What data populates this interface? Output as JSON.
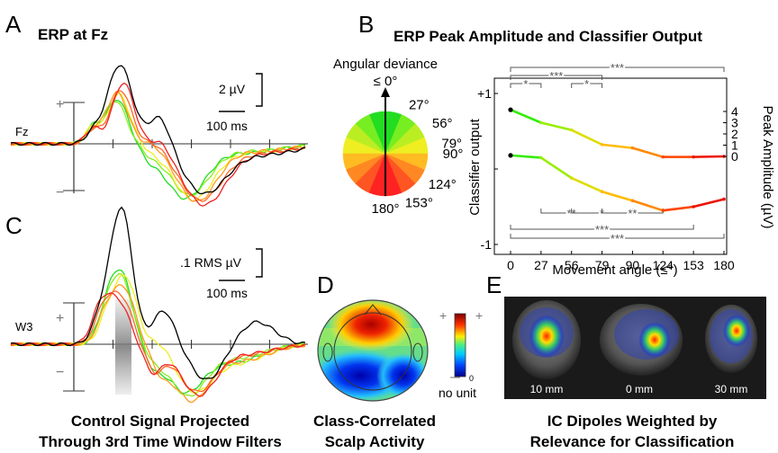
{
  "panels": {
    "A": {
      "letter": "A",
      "title": "ERP at Fz",
      "channel": "Fz",
      "scale_amp": "2 µV",
      "scale_time": "100 ms"
    },
    "B": {
      "letter": "B",
      "title": "ERP Peak Amplitude and Classifier Output"
    },
    "C": {
      "letter": "C",
      "channel": "W3",
      "scale_amp": ".1 RMS µV",
      "scale_time": "100 ms",
      "caption_line1": "Control Signal Projected",
      "caption_line2": "Through 3rd Time Window Filters"
    },
    "D": {
      "letter": "D",
      "caption_line1": "Class-Correlated",
      "caption_line2": "Scalp Activity",
      "colorbar_zero": "0",
      "colorbar_unit": "no unit"
    },
    "E": {
      "letter": "E",
      "caption_line1": "IC Dipoles Weighted by",
      "caption_line2": "Relevance for Classification",
      "slice_labels": [
        "10 mm",
        "0 mm",
        "30 mm"
      ]
    }
  },
  "pie": {
    "title_line1": "Angular deviance",
    "title_line2": "≤ 0°",
    "labels": [
      "27°",
      "56°",
      "79°",
      "90°",
      "124°",
      "153°",
      "180°"
    ],
    "colors": [
      "#22dd22",
      "#77ee22",
      "#bbee22",
      "#eeee22",
      "#ffbb22",
      "#ff8822",
      "#ff5522",
      "#ff2222"
    ]
  },
  "colors": {
    "green": "#22dd22",
    "lightgreen": "#88ee22",
    "yellow": "#eeee22",
    "orange": "#ff9922",
    "darkorange": "#ff6622",
    "red": "#ee2222",
    "black": "#000000"
  },
  "chart_data": {
    "type": "line",
    "xlabel": "Movement angle (≤°)",
    "ylabel_left": "Classifier output",
    "ylabel_right": "Peak Amplitude (µV)",
    "x": [
      0,
      27,
      56,
      79,
      90,
      124,
      153,
      180
    ],
    "ylim_left": [
      -1,
      1
    ],
    "left_ticks": [
      "+1",
      "-1"
    ],
    "ylim_right": [
      -1.2,
      4.6
    ],
    "right_ticks": [
      "4",
      "3",
      "2",
      "1",
      "0"
    ],
    "series": [
      {
        "axis": "right",
        "values": [
          4.15,
          3.0,
          2.35,
          1.05,
          0.75,
          -0.05,
          -0.05,
          0.0
        ]
      },
      {
        "axis": "left",
        "values": [
          0.18,
          0.15,
          -0.12,
          -0.3,
          -0.42,
          -0.55,
          -0.5,
          -0.4
        ]
      }
    ],
    "significance_top": [
      "*",
      "*",
      "***",
      "***"
    ],
    "significance_bottom": [
      "**",
      "*",
      "**",
      "***",
      "***"
    ]
  }
}
